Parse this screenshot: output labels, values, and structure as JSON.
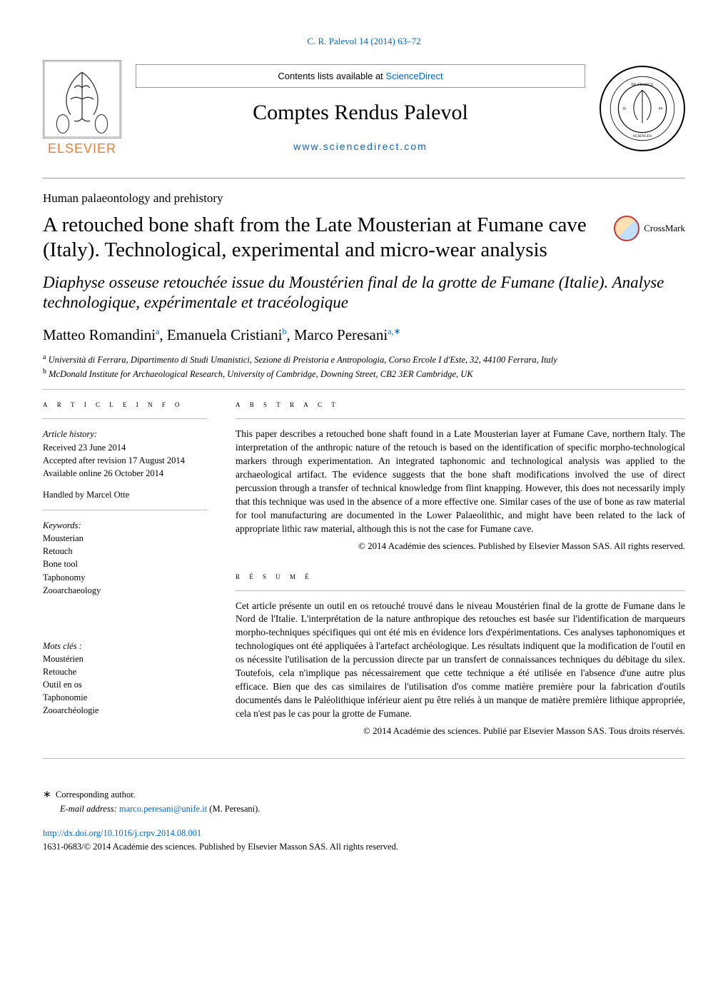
{
  "citation": "C. R. Palevol 14 (2014) 63–72",
  "banner": {
    "contents_prefix": "Contents lists available at ",
    "contents_link": "ScienceDirect",
    "journal": "Comptes Rendus Palevol",
    "sd_url": "www.sciencedirect.com",
    "elsevier": "ELSEVIER"
  },
  "section": "Human palaeontology and prehistory",
  "title": "A retouched bone shaft from the Late Mousterian at Fumane cave (Italy). Technological, experimental and micro-wear analysis",
  "subtitle": "Diaphyse osseuse retouchée issue du Moustérien final de la grotte de Fumane (Italie). Analyse technologique, expérimentale et tracéologique",
  "crossmark": "CrossMark",
  "authors_html": "Matteo Romandini<sup>a</sup>, Emanuela Cristiani<sup>b</sup>, Marco Peresani<sup>a,∗</sup>",
  "affiliations": {
    "a": "Università di Ferrara, Dipartimento di Studi Umanistici, Sezione di Preistoria e Antropologia, Corso Ercole I d'Este, 32, 44100 Ferrara, Italy",
    "b": "McDonald Institute for Archaeological Research, University of Cambridge, Downing Street, CB2 3ER Cambridge, UK"
  },
  "article_info": {
    "heading": "a r t i c l e    i n f o",
    "history_label": "Article history:",
    "received": "Received 23 June 2014",
    "accepted": "Accepted after revision 17 August 2014",
    "online": "Available online 26 October 2014",
    "handled": "Handled by Marcel Otte",
    "keywords_label": "Keywords:",
    "keywords": [
      "Mousterian",
      "Retouch",
      "Bone tool",
      "Taphonomy",
      "Zooarchaeology"
    ],
    "mots_label": "Mots clés :",
    "mots": [
      "Moustérien",
      "Retouche",
      "Outil en os",
      "Taphonomie",
      "Zooarchéologie"
    ]
  },
  "abstract": {
    "heading": "a b s t r a c t",
    "text": "This paper describes a retouched bone shaft found in a Late Mousterian layer at Fumane Cave, northern Italy. The interpretation of the anthropic nature of the retouch is based on the identification of specific morpho-technological markers through experimentation. An integrated taphonomic and technological analysis was applied to the archaeological artifact. The evidence suggests that the bone shaft modifications involved the use of direct percussion through a transfer of technical knowledge from flint knapping. However, this does not necessarily imply that this technique was used in the absence of a more effective one. Similar cases of the use of bone as raw material for tool manufacturing are documented in the Lower Palaeolithic, and might have been related to the lack of appropriate lithic raw material, although this is not the case for Fumane cave.",
    "copyright": "© 2014 Académie des sciences. Published by Elsevier Masson SAS. All rights reserved."
  },
  "resume": {
    "heading": "r é s u m é",
    "text": "Cet article présente un outil en os retouché trouvé dans le niveau Moustérien final de la grotte de Fumane dans le Nord de l'Italie. L'interprétation de la nature anthropique des retouches est basée sur l'identification de marqueurs morpho-techniques spécifiques qui ont été mis en évidence lors d'expérimentations. Ces analyses taphonomiques et technologiques ont été appliquées à l'artefact archéologique. Les résultats indiquent que la modification de l'outil en os nécessite l'utilisation de la percussion directe par un transfert de connaissances techniques du débitage du silex. Toutefois, cela n'implique pas nécessairement que cette technique a été utilisée en l'absence d'une autre plus efficace. Bien que des cas similaires de l'utilisation d'os comme matière première pour la fabrication d'outils documentés dans le Paléolithique inférieur aient pu être reliés à un manque de matière première lithique appropriée, cela n'est pas le cas pour la grotte de Fumane.",
    "copyright": "© 2014 Académie des sciences. Publié par Elsevier Masson SAS. Tous droits réservés."
  },
  "footer": {
    "corr_label": "Corresponding author.",
    "email_label": "E-mail address: ",
    "email": "marco.peresani@unife.it",
    "email_name": " (M. Peresani).",
    "doi": "http://dx.doi.org/10.1016/j.crpv.2014.08.001",
    "issn_line": "1631-0683/© 2014 Académie des sciences. Published by Elsevier Masson SAS. All rights reserved."
  },
  "colors": {
    "link": "#0066cc",
    "elsevier_orange": "#ee7d2e",
    "text": "#000000",
    "rule": "#999999"
  }
}
